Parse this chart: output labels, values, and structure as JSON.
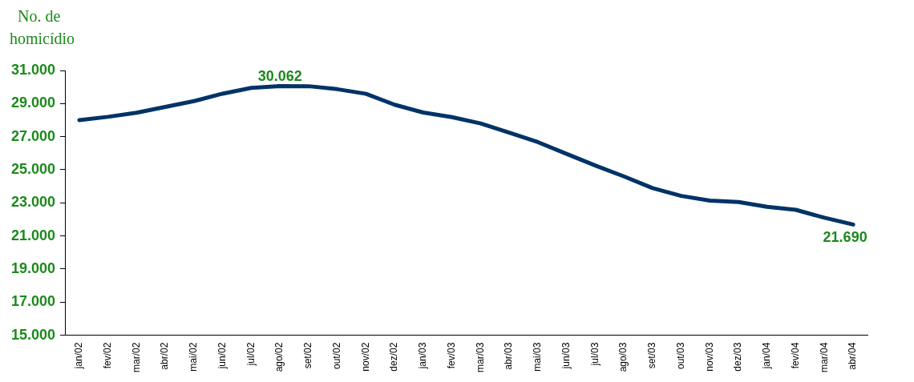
{
  "chart_data": {
    "type": "line",
    "ylabel": "No. de homicídio",
    "categories": [
      "jan/02",
      "fev/02",
      "mar/02",
      "abr/02",
      "mai/02",
      "jun/02",
      "jul/02",
      "ago/02",
      "set/02",
      "out/02",
      "nov/02",
      "dez/02",
      "jan/03",
      "fev/03",
      "mar/03",
      "abr/03",
      "mai/03",
      "jun/03",
      "jul/03",
      "ago/03",
      "set/03",
      "out/03",
      "nov/03",
      "dez/03",
      "jan/04",
      "fev/04",
      "mar/04",
      "abr/04"
    ],
    "series": [
      {
        "color": "#003366",
        "values": [
          28000,
          28200,
          28450,
          28800,
          29150,
          29600,
          29950,
          30062,
          30050,
          29870,
          29590,
          28930,
          28460,
          28180,
          27800,
          27240,
          26670,
          25960,
          25260,
          24600,
          23890,
          23420,
          23140,
          23050,
          22760,
          22580,
          22100,
          21690
        ],
        "value_labels": [
          null,
          null,
          null,
          null,
          null,
          null,
          null,
          "30.062",
          null,
          null,
          null,
          null,
          null,
          null,
          null,
          null,
          null,
          null,
          null,
          null,
          null,
          null,
          null,
          null,
          null,
          null,
          null,
          "21.690"
        ]
      }
    ],
    "ylim": [
      15000,
      31000
    ],
    "yticks": [
      {
        "value": 15000,
        "label": "15.000"
      },
      {
        "value": 17000,
        "label": "17.000"
      },
      {
        "value": 19000,
        "label": "19.000"
      },
      {
        "value": 21000,
        "label": "21.000"
      },
      {
        "value": 23000,
        "label": "23.000"
      },
      {
        "value": 25000,
        "label": "25.000"
      },
      {
        "value": 27000,
        "label": "27.000"
      },
      {
        "value": 29000,
        "label": "29.000"
      },
      {
        "value": 31000,
        "label": "31.000"
      }
    ],
    "grid": false,
    "legend": false,
    "marker": "none",
    "line_style": "solid"
  }
}
